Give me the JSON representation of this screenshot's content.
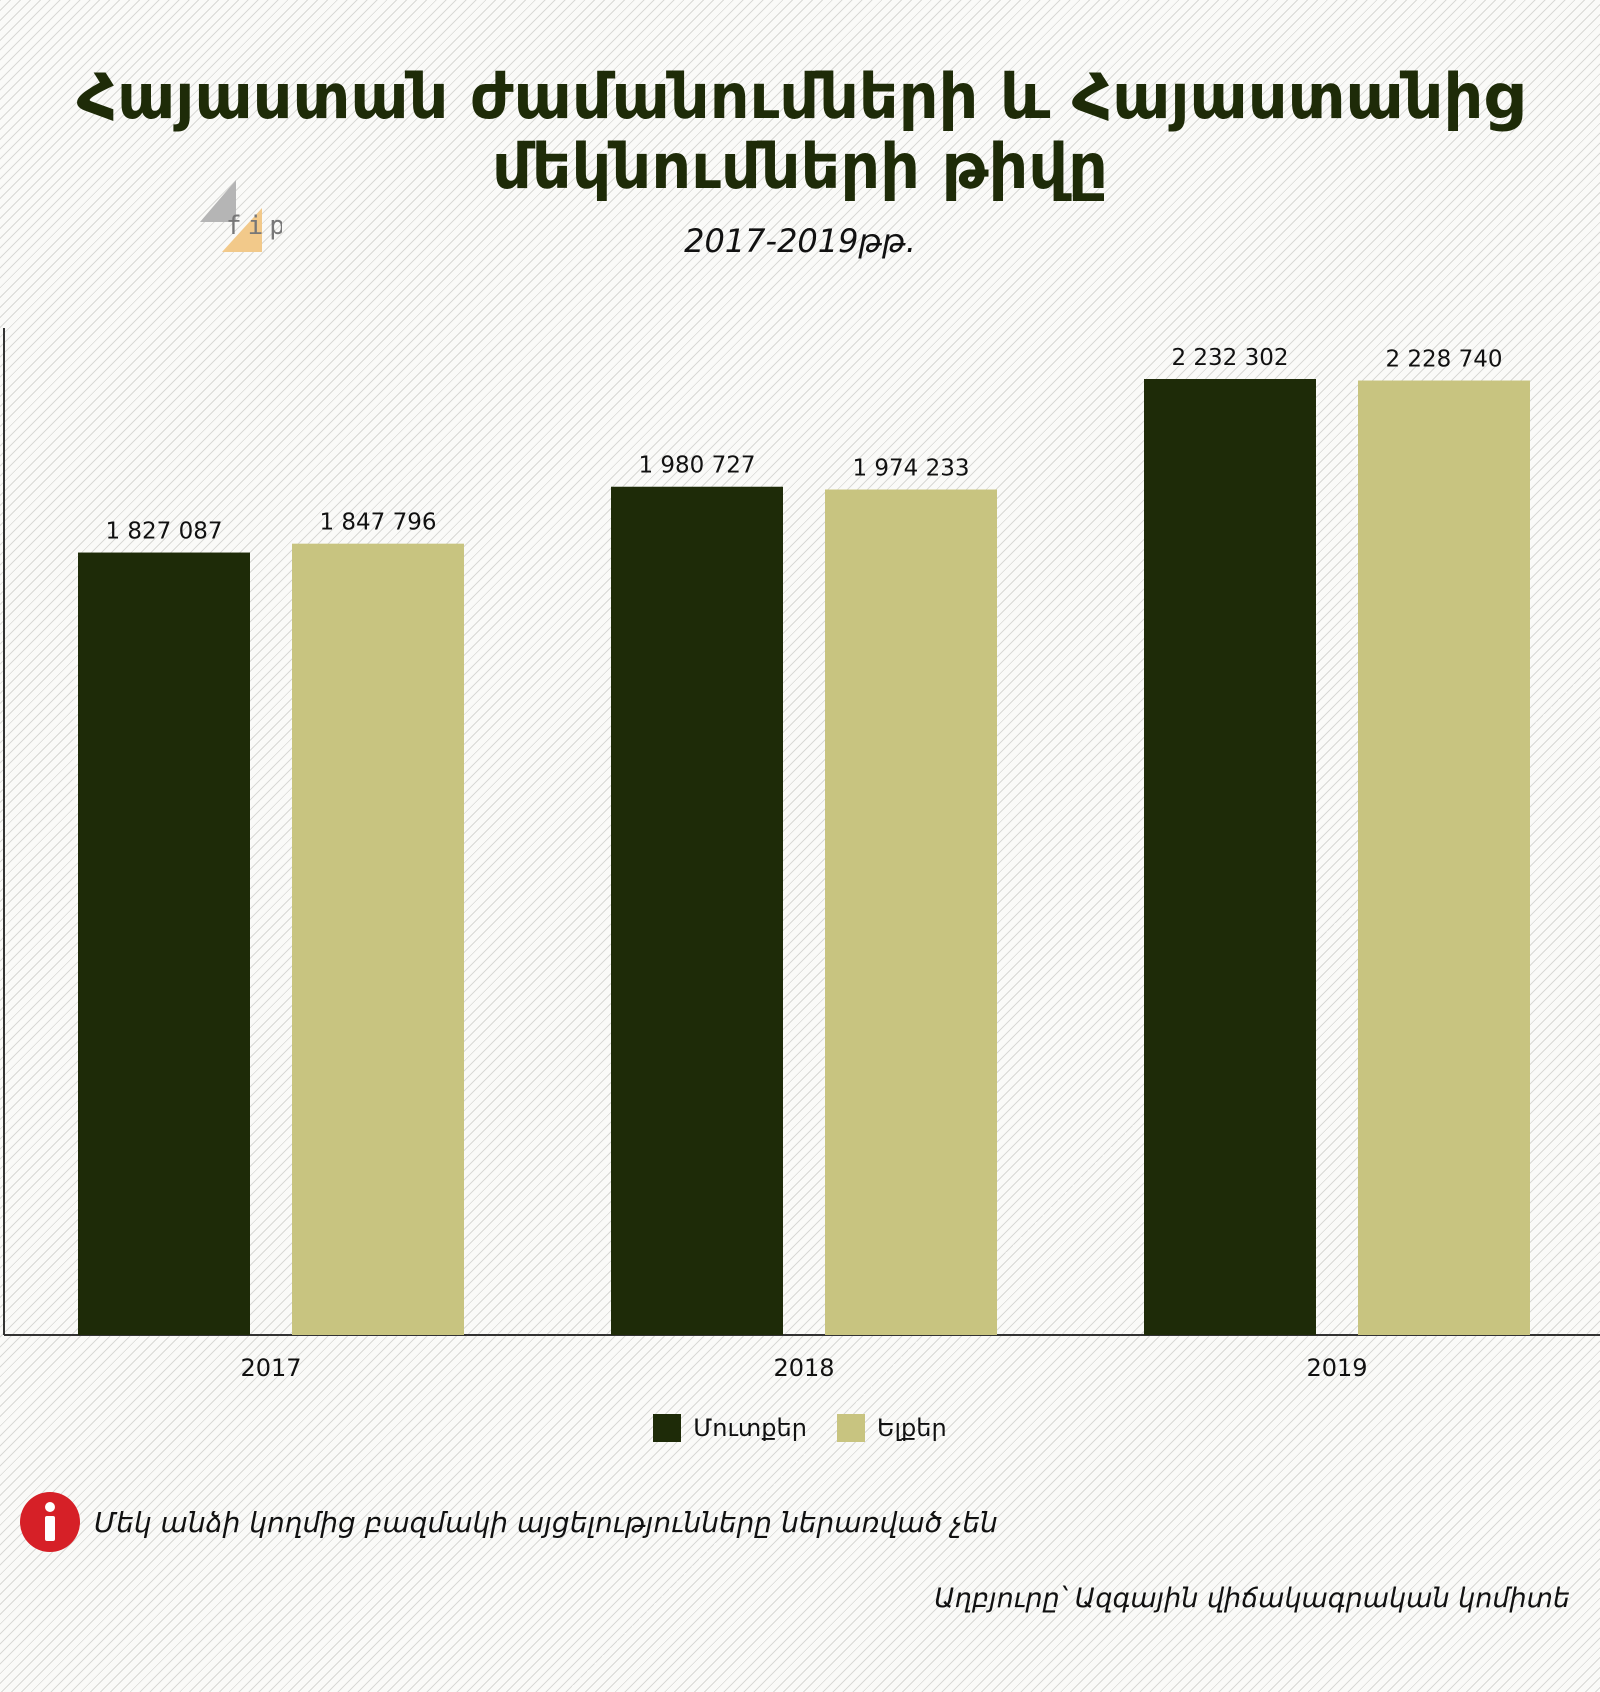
{
  "title": "Հայաստան ժամանումների և Հայաստանից մեկնումների թիվը",
  "subtitle": "2017-2019թթ.",
  "logo_text": "fip",
  "note": "Մեկ անձի կողմից բազմակի այցելությունները ներառված չեն",
  "source": "Աղբյուրը՝ Ազգային վիճակագրական կոմիտե",
  "icons": {
    "info": "info-icon",
    "logo": "fip-logo"
  },
  "colors": {
    "arrivals": "#1e2b08",
    "departures": "#c8c480",
    "title": "#1e2b08",
    "info": "#d62027"
  },
  "chart_data": {
    "type": "bar",
    "categories": [
      "2017",
      "2018",
      "2019"
    ],
    "series": [
      {
        "name": "Մուտքեր",
        "values": [
          1827087,
          1980727,
          2232302
        ],
        "labels": [
          "1 827 087",
          "1 980 727",
          "2 232 302"
        ],
        "color": "#1e2b08"
      },
      {
        "name": "Ելքեր",
        "values": [
          1847796,
          1974233,
          2228740
        ],
        "labels": [
          "1 847 796",
          "1 974 233",
          "2 228 740"
        ],
        "color": "#c8c480"
      }
    ],
    "ylim": [
      0,
      2400000
    ],
    "grid": false,
    "legend": "bottom-center",
    "xlabel": "",
    "ylabel": ""
  }
}
